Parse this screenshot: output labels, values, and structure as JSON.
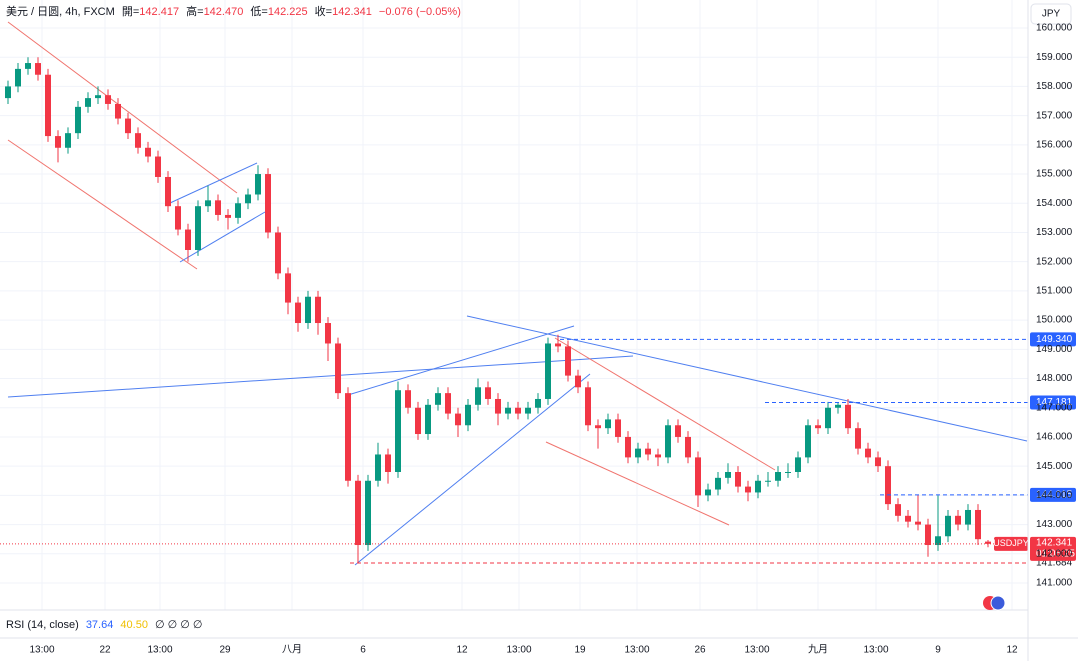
{
  "chart_data": {
    "type": "candlestick",
    "header": {
      "symbol": "美元 / 日圆, 4h, FXCM",
      "ohlc": [
        {
          "label": "開=",
          "value": "142.417"
        },
        {
          "label": "高=",
          "value": "142.470"
        },
        {
          "label": "低=",
          "value": "142.225"
        },
        {
          "label": "收=",
          "value": "142.341"
        }
      ],
      "change": "−0.076 (−0.05%)"
    },
    "currency": "JPY",
    "indicator": {
      "label": "RSI (14, close)",
      "values": [
        "37.64",
        "40.50"
      ],
      "extra": "∅ ∅ ∅ ∅"
    },
    "up_color": "#089981",
    "down_color": "#f23645",
    "grid": true,
    "ylim": [
      140.55,
      160.0
    ],
    "yticks": [
      {
        "value": 160,
        "label": "160.000"
      },
      {
        "value": 159,
        "label": "159.000"
      },
      {
        "value": 158,
        "label": "158.000"
      },
      {
        "value": 157,
        "label": "157.000"
      },
      {
        "value": 156,
        "label": "156.000"
      },
      {
        "value": 155,
        "label": "155.000"
      },
      {
        "value": 154,
        "label": "154.000"
      },
      {
        "value": 153,
        "label": "153.000"
      },
      {
        "value": 152,
        "label": "152.000"
      },
      {
        "value": 151,
        "label": "151.000"
      },
      {
        "value": 150,
        "label": "150.000"
      },
      {
        "value": 149,
        "label": "149.000"
      },
      {
        "value": 148,
        "label": "148.000"
      },
      {
        "value": 147,
        "label": "147.000"
      },
      {
        "value": 146,
        "label": "146.000"
      },
      {
        "value": 145,
        "label": "145.000"
      },
      {
        "value": 144,
        "label": "144.000"
      },
      {
        "value": 143,
        "label": "143.000"
      },
      {
        "value": 142,
        "label": "142.000"
      },
      {
        "value": 141,
        "label": "141.000"
      }
    ],
    "x_labels": [
      "13:00",
      "22",
      "13:00",
      "29",
      "八月",
      "6",
      "12",
      "13:00",
      "19",
      "13:00",
      "26",
      "13:00",
      "九月",
      "13:00",
      "9",
      "12"
    ],
    "price_lines": [
      {
        "value": 149.34,
        "label": "149.340"
      },
      {
        "value": 147.181,
        "label": "147.181"
      },
      {
        "value": 144.015,
        "label": "144.015"
      }
    ],
    "low_line": {
      "value": 141.684,
      "label": "141.684"
    },
    "last": {
      "name": "USDJPY",
      "value": 142.341,
      "label": "142.341",
      "countdown": "01:06:25"
    },
    "candles": [
      [
        157.6,
        158.2,
        157.4,
        158.0
      ],
      [
        158.0,
        158.8,
        157.8,
        158.6
      ],
      [
        158.6,
        159.0,
        158.4,
        158.8
      ],
      [
        158.8,
        159.0,
        158.2,
        158.4
      ],
      [
        158.4,
        158.6,
        156.1,
        156.3
      ],
      [
        156.3,
        156.5,
        155.4,
        155.9
      ],
      [
        155.9,
        156.6,
        155.7,
        156.4
      ],
      [
        156.4,
        157.5,
        156.2,
        157.3
      ],
      [
        157.3,
        157.8,
        157.1,
        157.6
      ],
      [
        157.6,
        158.0,
        157.4,
        157.7
      ],
      [
        157.7,
        157.9,
        157.2,
        157.4
      ],
      [
        157.4,
        157.6,
        156.7,
        156.9
      ],
      [
        156.9,
        157.1,
        156.2,
        156.4
      ],
      [
        156.4,
        156.6,
        155.7,
        155.9
      ],
      [
        155.9,
        156.1,
        155.4,
        155.6
      ],
      [
        155.6,
        155.8,
        154.7,
        154.9
      ],
      [
        154.9,
        155.1,
        153.7,
        153.9
      ],
      [
        153.9,
        154.1,
        152.9,
        153.1
      ],
      [
        153.1,
        153.3,
        152.0,
        152.4
      ],
      [
        152.4,
        154.1,
        152.2,
        153.9
      ],
      [
        153.9,
        154.6,
        153.7,
        154.1
      ],
      [
        154.1,
        154.3,
        153.4,
        153.6
      ],
      [
        153.6,
        153.8,
        153.1,
        153.5
      ],
      [
        153.5,
        154.2,
        153.3,
        154.0
      ],
      [
        154.0,
        154.5,
        153.8,
        154.3
      ],
      [
        154.3,
        155.3,
        154.1,
        155.0
      ],
      [
        155.0,
        155.2,
        152.8,
        153.0
      ],
      [
        153.0,
        153.2,
        151.4,
        151.6
      ],
      [
        151.6,
        151.8,
        150.2,
        150.6
      ],
      [
        150.6,
        150.8,
        149.6,
        149.9
      ],
      [
        149.9,
        151.0,
        149.7,
        150.8
      ],
      [
        150.8,
        151.0,
        149.5,
        149.9
      ],
      [
        149.9,
        150.1,
        148.6,
        149.2
      ],
      [
        149.2,
        149.4,
        147.3,
        147.5
      ],
      [
        147.5,
        147.7,
        144.3,
        144.5
      ],
      [
        144.5,
        144.7,
        141.684,
        142.3
      ],
      [
        142.3,
        144.7,
        142.1,
        144.5
      ],
      [
        144.5,
        145.8,
        144.3,
        145.4
      ],
      [
        145.4,
        145.6,
        144.4,
        144.8
      ],
      [
        144.8,
        147.9,
        144.6,
        147.6
      ],
      [
        147.6,
        147.8,
        146.8,
        147.0
      ],
      [
        147.0,
        147.2,
        145.9,
        146.1
      ],
      [
        146.1,
        147.3,
        145.9,
        147.1
      ],
      [
        147.1,
        147.7,
        146.9,
        147.5
      ],
      [
        147.5,
        147.7,
        146.6,
        146.8
      ],
      [
        146.8,
        147.0,
        146.0,
        146.4
      ],
      [
        146.4,
        147.3,
        146.2,
        147.1
      ],
      [
        147.1,
        148.0,
        146.9,
        147.7
      ],
      [
        147.7,
        147.9,
        147.1,
        147.3
      ],
      [
        147.3,
        147.5,
        146.4,
        146.8
      ],
      [
        146.8,
        147.2,
        146.6,
        147.0
      ],
      [
        147.0,
        147.2,
        146.6,
        146.8
      ],
      [
        146.8,
        147.2,
        146.6,
        147.0
      ],
      [
        147.0,
        147.5,
        146.8,
        147.3
      ],
      [
        147.3,
        149.4,
        147.1,
        149.2
      ],
      [
        149.2,
        149.5,
        148.9,
        149.1
      ],
      [
        149.1,
        149.3,
        147.9,
        148.1
      ],
      [
        148.1,
        148.3,
        147.5,
        147.7
      ],
      [
        147.7,
        147.9,
        146.2,
        146.4
      ],
      [
        146.4,
        146.6,
        145.6,
        146.3
      ],
      [
        146.3,
        146.8,
        146.1,
        146.6
      ],
      [
        146.6,
        146.8,
        145.8,
        146.0
      ],
      [
        146.0,
        146.2,
        145.1,
        145.3
      ],
      [
        145.3,
        145.8,
        145.1,
        145.6
      ],
      [
        145.6,
        145.8,
        145.2,
        145.4
      ],
      [
        145.4,
        145.6,
        145.0,
        145.3
      ],
      [
        145.3,
        146.6,
        145.1,
        146.4
      ],
      [
        146.4,
        146.6,
        145.8,
        146.0
      ],
      [
        146.0,
        146.2,
        145.1,
        145.3
      ],
      [
        145.3,
        145.5,
        143.6,
        144.0
      ],
      [
        144.0,
        144.4,
        143.8,
        144.2
      ],
      [
        144.2,
        144.8,
        144.0,
        144.6
      ],
      [
        144.6,
        145.1,
        144.4,
        144.8
      ],
      [
        144.8,
        145.0,
        144.1,
        144.3
      ],
      [
        144.3,
        144.5,
        143.8,
        144.1
      ],
      [
        144.1,
        144.7,
        143.9,
        144.5
      ],
      [
        144.5,
        144.8,
        144.3,
        144.5
      ],
      [
        144.5,
        145.0,
        144.3,
        144.8
      ],
      [
        144.8,
        145.1,
        144.6,
        144.8
      ],
      [
        144.8,
        145.5,
        144.6,
        145.3
      ],
      [
        145.3,
        146.6,
        145.1,
        146.4
      ],
      [
        146.4,
        146.6,
        146.1,
        146.3
      ],
      [
        146.3,
        147.2,
        146.1,
        147.0
      ],
      [
        147.0,
        147.181,
        146.8,
        147.1
      ],
      [
        147.1,
        147.3,
        146.1,
        146.3
      ],
      [
        146.3,
        146.5,
        145.4,
        145.6
      ],
      [
        145.6,
        145.8,
        145.1,
        145.3
      ],
      [
        145.3,
        145.5,
        144.8,
        145.0
      ],
      [
        145.0,
        145.2,
        143.5,
        143.7
      ],
      [
        143.7,
        143.9,
        143.1,
        143.3
      ],
      [
        143.3,
        143.5,
        142.9,
        143.1
      ],
      [
        143.1,
        144.015,
        142.8,
        143.0
      ],
      [
        143.0,
        143.2,
        141.9,
        142.3
      ],
      [
        142.3,
        144.0,
        142.1,
        142.6
      ],
      [
        142.6,
        143.5,
        142.4,
        143.3
      ],
      [
        143.3,
        143.5,
        142.8,
        143.0
      ],
      [
        143.0,
        143.7,
        142.8,
        143.5
      ],
      [
        143.5,
        143.7,
        142.3,
        142.5
      ],
      [
        142.417,
        142.47,
        142.225,
        142.341
      ]
    ]
  }
}
